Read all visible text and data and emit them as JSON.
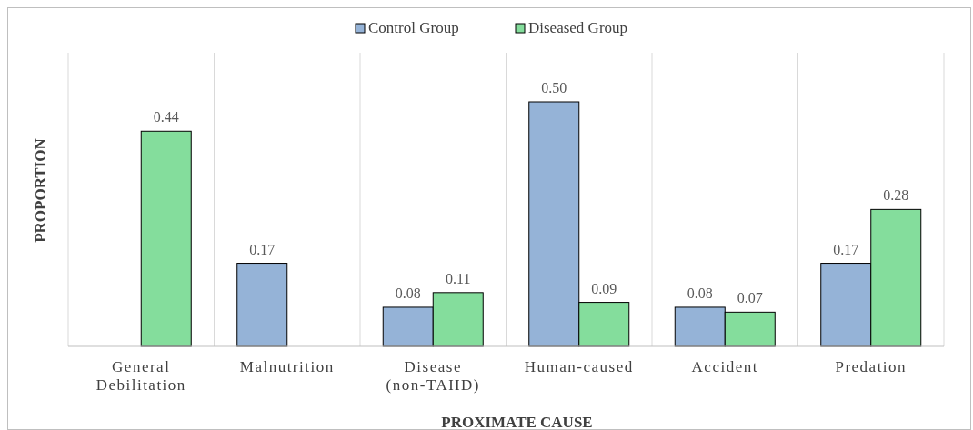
{
  "chart_data": {
    "type": "bar",
    "xlabel": "PROXIMATE CAUSE",
    "ylabel": "PROPORTION",
    "categories": [
      "General Debilitation",
      "Malnutrition",
      "Disease (non-TAHD)",
      "Human-caused",
      "Accident",
      "Predation"
    ],
    "series": [
      {
        "name": "Control Group",
        "color": "#95b3d7",
        "values": [
          null,
          0.17,
          0.08,
          0.5,
          0.08,
          0.17
        ],
        "value_labels": [
          null,
          "0.17",
          "0.08",
          "0.50",
          "0.08",
          "0.17"
        ]
      },
      {
        "name": "Diseased Group",
        "color": "#84dd9c",
        "values": [
          0.44,
          null,
          0.11,
          0.09,
          0.07,
          0.28
        ],
        "value_labels": [
          "0.44",
          null,
          "0.11",
          "0.09",
          "0.07",
          "0.28"
        ]
      }
    ],
    "legend": "top",
    "grid": "x"
  }
}
